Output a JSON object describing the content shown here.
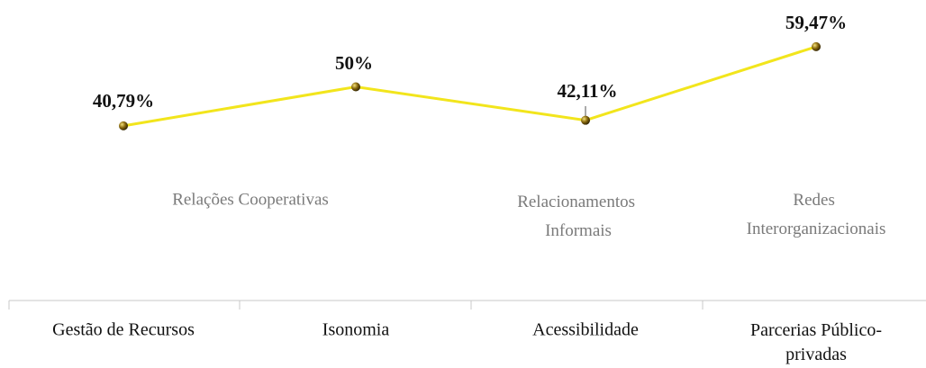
{
  "chart_data": {
    "type": "line",
    "categories": [
      "Gestão de Recursos",
      "Isonomia",
      "Acessibilidade",
      "Parcerias Público-privadas"
    ],
    "annotations": [
      "Relações Cooperativas",
      "Relacionamentos Informais",
      "Redes Interorganizacionais"
    ],
    "series": [
      {
        "color": "#f2e51c",
        "values": [
          40.79,
          50,
          42.11,
          59.47
        ],
        "value_labels": [
          "40,79%",
          "50%",
          "42,11%",
          "59,47%"
        ]
      }
    ]
  }
}
